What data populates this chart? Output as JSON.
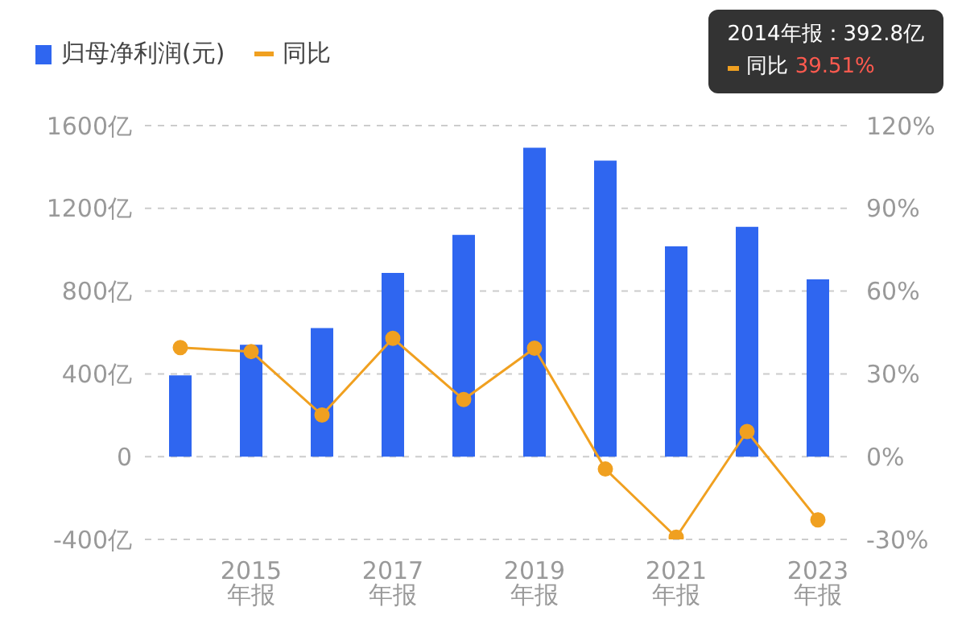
{
  "chart_data": {
    "type": "bar",
    "categories": [
      null,
      "2015 年报",
      null,
      "2017 年报",
      null,
      "2019 年报",
      null,
      "2021 年报",
      null,
      "2023 年报"
    ],
    "series": [
      {
        "name": "归母净利润(元)",
        "color": "#2f66f0",
        "values": [
          392.8,
          541,
          621,
          888,
          1072,
          1493,
          1431,
          1016,
          1111,
          857
        ]
      },
      {
        "name": "同比",
        "type": "line",
        "axis": "y2",
        "color": "#f0a020",
        "values": [
          39.51,
          38.1,
          15.1,
          42.9,
          20.7,
          39.3,
          -4.5,
          -29.2,
          9.1,
          -22.9
        ]
      }
    ],
    "ylim": [
      -400,
      1600
    ],
    "yticks": [
      {
        "value": -400,
        "label": "-400亿"
      },
      0,
      {
        "value": 400,
        "label": "400亿"
      },
      {
        "value": 800,
        "label": "800亿"
      },
      {
        "value": 1200,
        "label": "1200亿"
      },
      {
        "value": 1600,
        "label": "1600亿"
      }
    ],
    "y2lim": [
      -30,
      120
    ],
    "y2ticks": [
      {
        "value": -30,
        "label": "-30%"
      },
      {
        "value": 0,
        "label": "0%"
      },
      {
        "value": 30,
        "label": "30%"
      },
      {
        "value": 60,
        "label": "60%"
      },
      {
        "value": 90,
        "label": "90%"
      },
      {
        "value": 120,
        "label": "120%"
      }
    ],
    "annotations": [
      "2014年报：392.8亿",
      "同比 39.51%"
    ],
    "grid": "y",
    "legend": "top left",
    "marker": "circle"
  }
}
